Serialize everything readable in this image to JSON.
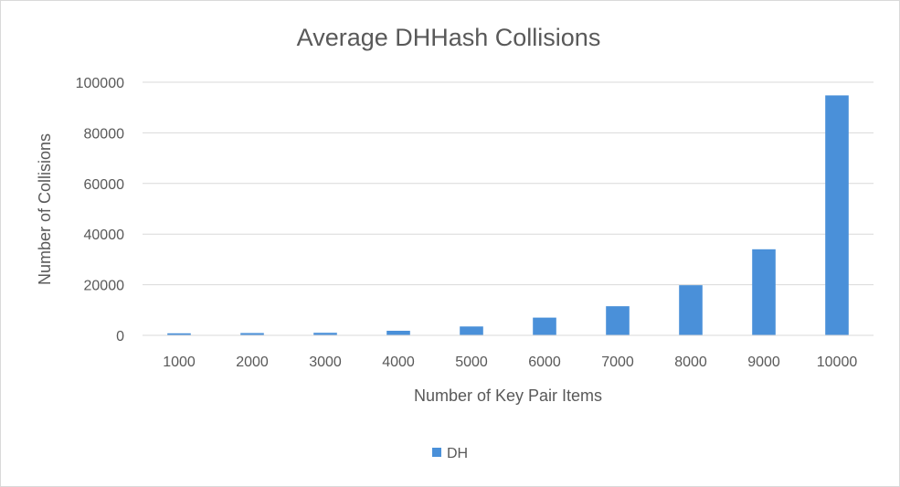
{
  "chart_data": {
    "type": "bar",
    "title": "Average DHHash Collisions",
    "xlabel": "Number of Key Pair Items",
    "ylabel": "Number of Collisions",
    "categories": [
      "1000",
      "2000",
      "3000",
      "4000",
      "5000",
      "6000",
      "7000",
      "8000",
      "9000",
      "10000"
    ],
    "series": [
      {
        "name": "DH",
        "color": "#4a90d9",
        "values": [
          800,
          900,
          1000,
          1800,
          3500,
          7000,
          11500,
          19800,
          34000,
          94800
        ]
      }
    ],
    "yticks": [
      "0",
      "20000",
      "40000",
      "60000",
      "80000",
      "100000"
    ],
    "ylim": [
      0,
      100000
    ],
    "grid": true,
    "legend": "bottom"
  }
}
